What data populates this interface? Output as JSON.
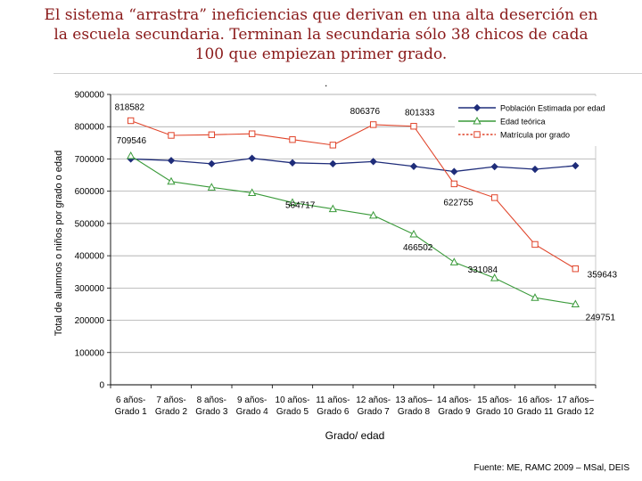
{
  "slide": {
    "title_line1": "El sistema “arrastra” ineficiencias que derivan en una alta deserción en",
    "title_line2": "la escuela secundaria.  Terminan la secundaria sólo 38 chicos de cada",
    "title_line3": "100 que empiezan primer grado.",
    "dot": ".",
    "source": "Fuente: ME, RAMC 2009 – MSal, DEIS"
  },
  "colors": {
    "title": "#8a1a1a",
    "poblacion": "#1f2d7a",
    "edad_teorica": "#3a9a3a",
    "matricula": "#e0442a",
    "grid": "#9a9a9a"
  },
  "chart_data": {
    "type": "line",
    "xlabel": "Grado/ edad",
    "ylabel": "Total de alumnos o niños por grado o edad",
    "ylim": [
      0,
      900000
    ],
    "yticks": [
      "900000",
      "800000",
      "700000",
      "600000",
      "500000",
      "400000",
      "300000",
      "200000",
      "100000",
      "0"
    ],
    "categories_top": [
      "6 años-",
      "7 años-",
      "8 años-",
      "9 años-",
      "10 años-",
      "11 años-",
      "12 años-",
      "13 años–",
      "14 años-",
      "15 años-",
      "16 años-",
      "17 años–"
    ],
    "categories_bottom": [
      "Grado 1",
      "Grado 2",
      "Grado 3",
      "Grado 4",
      "Grado 5",
      "Grado 6",
      "Grado 7",
      "Grado 8",
      "Grado 9",
      "Grado 10",
      "Grado 11",
      "Grado 12"
    ],
    "legend": "top-right",
    "grid": true,
    "series": [
      {
        "name": "Población Estimada por edad",
        "marker": "diamond",
        "line": "solid",
        "values": [
          700000,
          695000,
          685000,
          702000,
          688000,
          685000,
          692000,
          677000,
          661000,
          676000,
          668000,
          679000
        ]
      },
      {
        "name": "Edad teórica",
        "marker": "triangle",
        "line": "solid",
        "values": [
          709546,
          630000,
          612000,
          595000,
          564717,
          545000,
          525000,
          466502,
          380000,
          331084,
          270000,
          249751
        ]
      },
      {
        "name": "Matrícula por grado",
        "marker": "square",
        "line": "dotted",
        "values": [
          818582,
          773000,
          775000,
          778000,
          760000,
          743000,
          806376,
          801333,
          622755,
          580000,
          435000,
          359643
        ]
      }
    ],
    "data_labels": [
      {
        "text": "818582",
        "series": 2,
        "index": 0
      },
      {
        "text": "709546",
        "series": 1,
        "index": 0
      },
      {
        "text": "806376",
        "series": 2,
        "index": 6
      },
      {
        "text": "801333",
        "series": 2,
        "index": 7
      },
      {
        "text": "622755",
        "series": 2,
        "index": 8
      },
      {
        "text": "564717",
        "series": 1,
        "index": 4
      },
      {
        "text": "466502",
        "series": 1,
        "index": 7
      },
      {
        "text": "331084",
        "series": 1,
        "index": 9
      },
      {
        "text": "359643",
        "series": 2,
        "index": 11
      },
      {
        "text": "249751",
        "series": 1,
        "index": 11
      }
    ]
  }
}
